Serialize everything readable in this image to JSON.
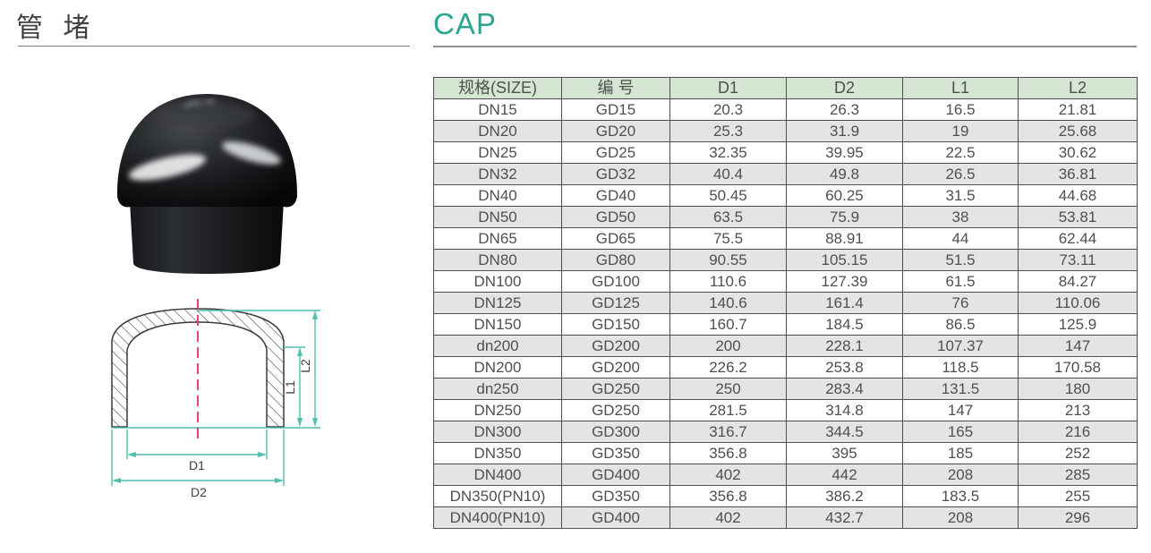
{
  "page": {
    "left_title": "管 堵",
    "right_title": "CAP"
  },
  "colors": {
    "accent_teal": "#2ba491",
    "header_green": "#d5e7d3",
    "row_alt_gray": "#e4e4e4",
    "dim_teal": "#4fbfae",
    "centerline_magenta": "#e82a80",
    "table_border": "#4d4d4d",
    "text_gray": "#4f4f4f",
    "rule_gray": "#8f8f8f"
  },
  "diagram": {
    "labels": {
      "d1": "D1",
      "d2": "D2",
      "l1": "L1",
      "l2": "L2"
    }
  },
  "table": {
    "columns": [
      "规格(SIZE)",
      "编 号",
      "D1",
      "D2",
      "L1",
      "L2"
    ],
    "rows": [
      [
        "DN15",
        "GD15",
        "20.3",
        "26.3",
        "16.5",
        "21.81"
      ],
      [
        "DN20",
        "GD20",
        "25.3",
        "31.9",
        "19",
        "25.68"
      ],
      [
        "DN25",
        "GD25",
        "32.35",
        "39.95",
        "22.5",
        "30.62"
      ],
      [
        "DN32",
        "GD32",
        "40.4",
        "49.8",
        "26.5",
        "36.81"
      ],
      [
        "DN40",
        "GD40",
        "50.45",
        "60.25",
        "31.5",
        "44.68"
      ],
      [
        "DN50",
        "GD50",
        "63.5",
        "75.9",
        "38",
        "53.81"
      ],
      [
        "DN65",
        "GD65",
        "75.5",
        "88.91",
        "44",
        "62.44"
      ],
      [
        "DN80",
        "GD80",
        "90.55",
        "105.15",
        "51.5",
        "73.11"
      ],
      [
        "DN100",
        "GD100",
        "110.6",
        "127.39",
        "61.5",
        "84.27"
      ],
      [
        "DN125",
        "GD125",
        "140.6",
        "161.4",
        "76",
        "110.06"
      ],
      [
        "DN150",
        "GD150",
        "160.7",
        "184.5",
        "86.5",
        "125.9"
      ],
      [
        "dn200",
        "GD200",
        "200",
        "228.1",
        "107.37",
        "147"
      ],
      [
        "DN200",
        "GD200",
        "226.2",
        "253.8",
        "118.5",
        "170.58"
      ],
      [
        "dn250",
        "GD250",
        "250",
        "283.4",
        "131.5",
        "180"
      ],
      [
        "DN250",
        "GD250",
        "281.5",
        "314.8",
        "147",
        "213"
      ],
      [
        "DN300",
        "GD300",
        "316.7",
        "344.5",
        "165",
        "216"
      ],
      [
        "DN350",
        "GD350",
        "356.8",
        "395",
        "185",
        "252"
      ],
      [
        "DN400",
        "GD400",
        "402",
        "442",
        "208",
        "285"
      ],
      [
        "DN350(PN10)",
        "GD350",
        "356.8",
        "386.2",
        "183.5",
        "255"
      ],
      [
        "DN400(PN10)",
        "GD400",
        "402",
        "432.7",
        "208",
        "296"
      ]
    ]
  }
}
